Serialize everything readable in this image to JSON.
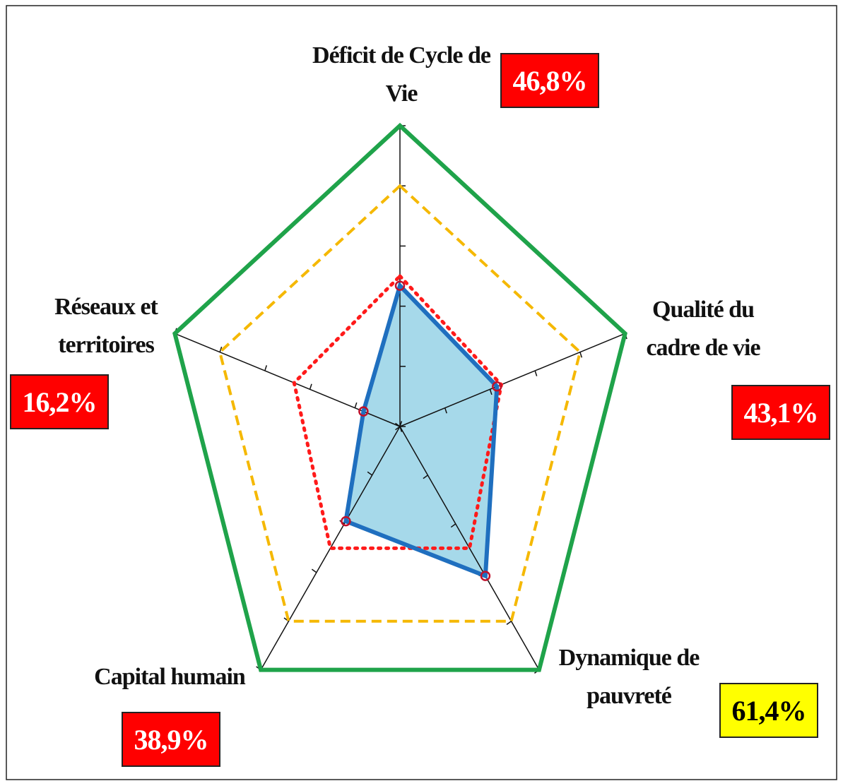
{
  "chart_data": {
    "type": "radar",
    "categories": [
      "Déficit de Cycle de Vie",
      "Qualité du cadre de vie",
      "Dynamique de pauvreté",
      "Capital humain",
      "Réseaux et territoires"
    ],
    "rlim": [
      0,
      100
    ],
    "rticks": [
      0,
      20,
      40,
      60,
      80,
      100
    ],
    "series": [
      {
        "color": "#1fa34a",
        "style": "solid",
        "values": [
          100,
          100,
          100,
          100,
          100
        ]
      },
      {
        "color": "#f5b800",
        "style": "dashed",
        "values": [
          80,
          80,
          80,
          80,
          80
        ]
      },
      {
        "color": "#ff1a1a",
        "style": "dotted",
        "values": [
          50,
          45,
          50,
          50,
          47
        ]
      },
      {
        "color": "#1f6fbf",
        "fill": "#a6d9ea",
        "style": "solid",
        "markers": true,
        "values": [
          46.8,
          43.1,
          61.4,
          38.9,
          16.2
        ],
        "value_labels": [
          "46,8%",
          "43,1%",
          "61,4%",
          "38,9%",
          "16,2%"
        ],
        "value_label_colors": [
          "#ff0000",
          "#ff0000",
          "#ffff00",
          "#ff0000",
          "#ff0000"
        ],
        "value_label_text_colors": [
          "#ffffff",
          "#ffffff",
          "#000000",
          "#ffffff",
          "#ffffff"
        ]
      }
    ]
  }
}
